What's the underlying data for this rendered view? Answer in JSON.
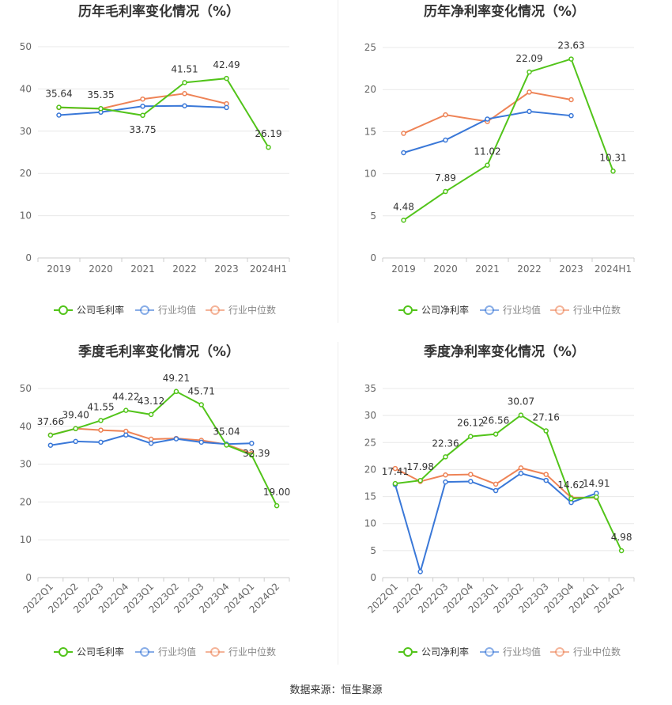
{
  "footer": "数据来源：恒生聚源",
  "colors": {
    "company": "#52c41a",
    "industry_avg": "#3a78d8",
    "industry_median": "#ee8356"
  },
  "chart_data": [
    {
      "type": "line",
      "title": "历年毛利率变化情况（%）",
      "categories": [
        "2019",
        "2020",
        "2021",
        "2022",
        "2023",
        "2024H1"
      ],
      "ylim": [
        0,
        50
      ],
      "yticks": [
        0,
        10,
        20,
        30,
        40,
        50
      ],
      "grid": true,
      "legend_position": "bottom",
      "series": [
        {
          "name": "公司毛利率",
          "values": [
            35.64,
            35.35,
            33.75,
            41.51,
            42.49,
            26.19
          ],
          "labels": true
        },
        {
          "name": "行业均值",
          "values": [
            33.8,
            34.5,
            35.9,
            36.0,
            35.6,
            null
          ]
        },
        {
          "name": "行业中位数",
          "values": [
            35.6,
            35.3,
            37.6,
            38.9,
            36.5,
            null
          ]
        }
      ]
    },
    {
      "type": "line",
      "title": "历年净利率变化情况（%）",
      "categories": [
        "2019",
        "2020",
        "2021",
        "2022",
        "2023",
        "2024H1"
      ],
      "ylim": [
        0,
        25
      ],
      "yticks": [
        0,
        5,
        10,
        15,
        20,
        25
      ],
      "grid": true,
      "legend_position": "bottom",
      "series": [
        {
          "name": "公司净利率",
          "values": [
            4.48,
            7.89,
            11.02,
            22.09,
            23.63,
            10.31
          ],
          "labels": true
        },
        {
          "name": "行业均值",
          "values": [
            12.5,
            14.0,
            16.5,
            17.4,
            16.9,
            null
          ]
        },
        {
          "name": "行业中位数",
          "values": [
            14.8,
            17.0,
            16.2,
            19.7,
            18.8,
            null
          ]
        }
      ]
    },
    {
      "type": "line",
      "title": "季度毛利率变化情况（%）",
      "categories": [
        "2022Q1",
        "2022Q2",
        "2022Q3",
        "2022Q4",
        "2023Q1",
        "2023Q2",
        "2023Q3",
        "2023Q4",
        "2024Q1",
        "2024Q2"
      ],
      "ylim": [
        0,
        50
      ],
      "yticks": [
        0,
        10,
        20,
        30,
        40,
        50
      ],
      "grid": true,
      "legend_position": "bottom",
      "series": [
        {
          "name": "公司毛利率",
          "values": [
            37.66,
            39.4,
            41.55,
            44.22,
            43.12,
            49.21,
            45.71,
            35.04,
            32.39,
            19.0
          ],
          "labels": true
        },
        {
          "name": "行业均值",
          "values": [
            35.0,
            36.0,
            35.8,
            37.7,
            35.5,
            36.7,
            35.8,
            35.3,
            35.5,
            null
          ]
        },
        {
          "name": "行业中位数",
          "values": [
            37.7,
            39.4,
            39.0,
            38.7,
            36.6,
            36.8,
            36.3,
            35.2,
            32.8,
            null
          ]
        }
      ]
    },
    {
      "type": "line",
      "title": "季度净利率变化情况（%）",
      "categories": [
        "2022Q1",
        "2022Q2",
        "2022Q3",
        "2022Q4",
        "2023Q1",
        "2023Q2",
        "2023Q3",
        "2023Q4",
        "2024Q1",
        "2024Q2"
      ],
      "ylim": [
        0,
        35
      ],
      "yticks": [
        0,
        5,
        10,
        15,
        20,
        25,
        30,
        35
      ],
      "grid": true,
      "legend_position": "bottom",
      "series": [
        {
          "name": "公司净利率",
          "values": [
            17.41,
            17.98,
            22.36,
            26.12,
            26.56,
            30.07,
            27.16,
            14.62,
            14.91,
            4.98
          ],
          "labels": true
        },
        {
          "name": "行业均值",
          "values": [
            17.2,
            1.1,
            17.7,
            17.8,
            16.1,
            19.3,
            18.0,
            13.9,
            15.6,
            null
          ]
        },
        {
          "name": "行业中位数",
          "values": [
            20.2,
            17.8,
            19.0,
            19.1,
            17.3,
            20.3,
            19.1,
            14.8,
            14.8,
            null
          ]
        }
      ]
    }
  ]
}
